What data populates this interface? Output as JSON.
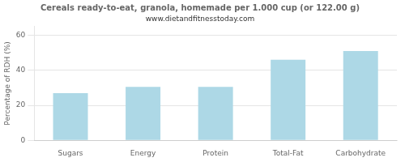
{
  "chart_data": {
    "type": "bar",
    "title": "Cereals ready-to-eat, granola, homemade per 1.000 cup (or 122.00 g)",
    "subtitle": "www.dietandfitnesstoday.com",
    "categories": [
      "Sugars",
      "Energy",
      "Protein",
      "Total-Fat",
      "Carbohydrate"
    ],
    "values": [
      27,
      30.5,
      30.5,
      46,
      51
    ],
    "color": "#add8e6",
    "ylabel": "Percentage of RDH (%)",
    "ylim": [
      0,
      65
    ],
    "yticks": [
      0,
      20,
      40,
      60
    ],
    "grid": true
  }
}
